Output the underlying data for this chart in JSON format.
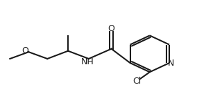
{
  "background_color": "#ffffff",
  "line_color": "#1a1a1a",
  "line_width": 1.5,
  "font_size": 9.0,
  "figsize": [
    2.84,
    1.36
  ],
  "dpi": 100,
  "xlim": [
    0.0,
    1.0
  ],
  "ylim": [
    0.05,
    0.95
  ]
}
